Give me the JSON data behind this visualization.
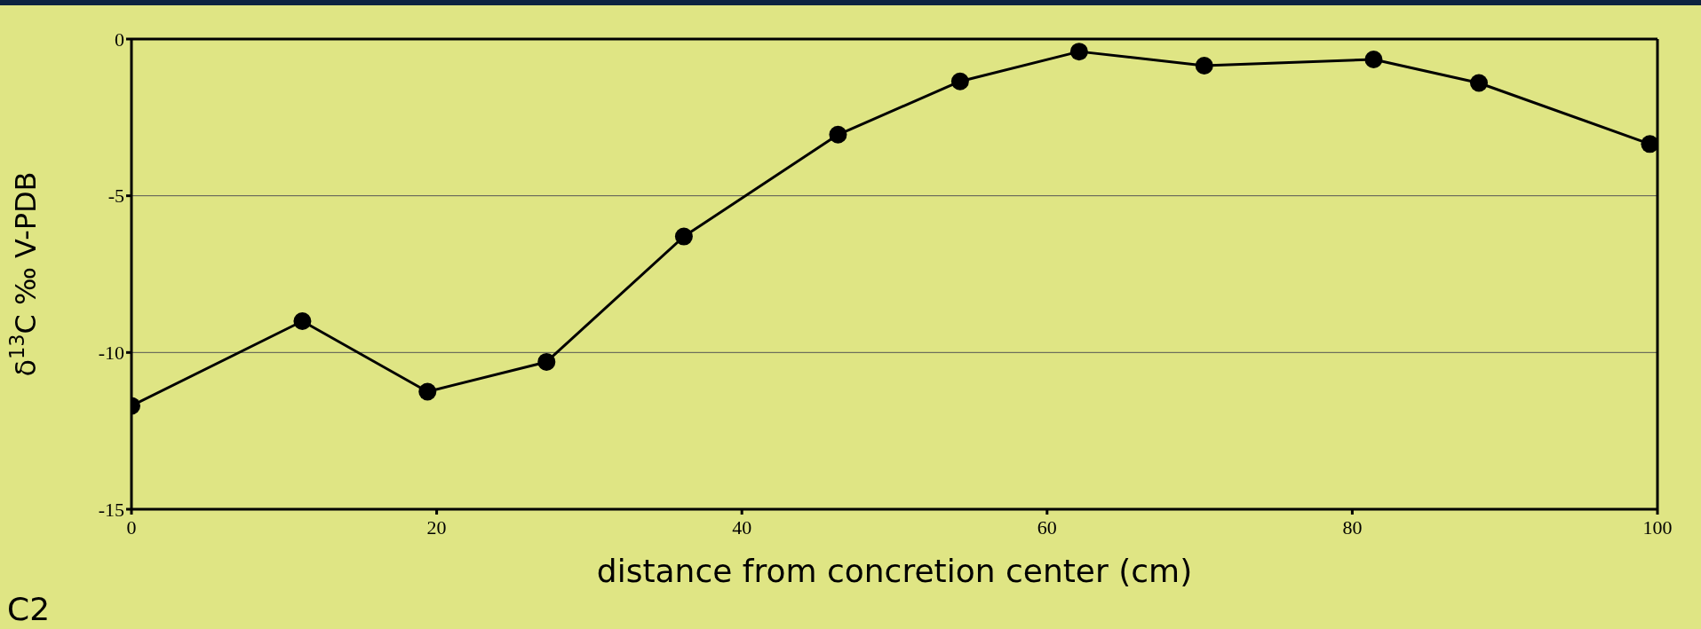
{
  "chart_data": {
    "type": "line",
    "xlabel": "distance from concretion center (cm)",
    "ylabel": "δ$^{13}$C ‰ V-PDB",
    "annotations": [
      "C2"
    ],
    "x": [
      0,
      11.2,
      19.4,
      27.2,
      36.2,
      46.3,
      54.3,
      62.1,
      70.3,
      81.4,
      88.3,
      99.5
    ],
    "series": [
      {
        "color": "#000000",
        "values": [
          -11.7,
          -9.0,
          -11.25,
          -10.3,
          -6.3,
          -3.05,
          -1.35,
          -0.4,
          -0.85,
          -0.65,
          -1.4,
          -3.35
        ]
      }
    ],
    "xlim": [
      0,
      100
    ],
    "xticks": [
      0,
      20,
      40,
      60,
      80,
      100
    ],
    "ylim": [
      -15,
      0
    ],
    "yticks": [
      -15,
      -10,
      -5,
      0
    ],
    "grid": "y",
    "marker": "circle",
    "line_style": "solid",
    "legend": false
  }
}
